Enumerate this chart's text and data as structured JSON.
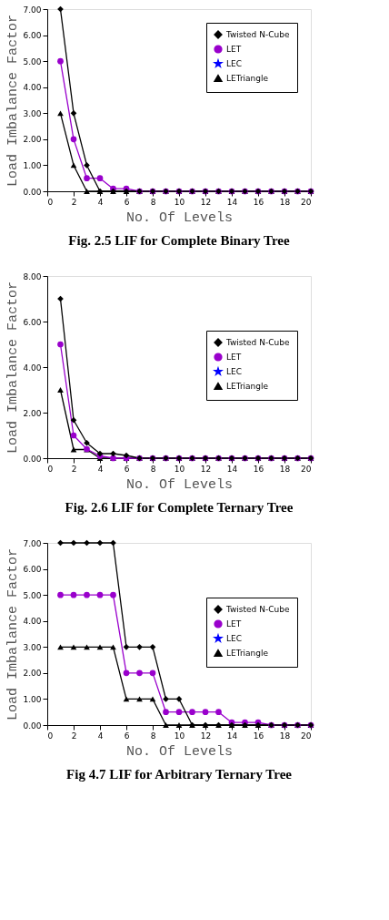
{
  "chart_data": [
    {
      "type": "line",
      "title": "Fig. 2.5 LIF for Complete Binary Tree",
      "xlabel": "No.  Of   Levels",
      "ylabel": "Load Imbalance Factor",
      "legend": "top right",
      "grid": false,
      "x": [
        1,
        2,
        3,
        4,
        5,
        6,
        7,
        8,
        9,
        10,
        11,
        12,
        13,
        14,
        15,
        16,
        17,
        18,
        19,
        20
      ],
      "xlim": [
        0,
        20
      ],
      "xticks": [
        0,
        2,
        4,
        6,
        8,
        10,
        12,
        14,
        16,
        18,
        20
      ],
      "ylim": [
        0,
        7
      ],
      "yticks": [
        {
          "value": 0,
          "label": "0.00"
        },
        {
          "value": 1,
          "label": "1.00"
        },
        {
          "value": 2,
          "label": "2.00"
        },
        {
          "value": 3,
          "label": "3.00"
        },
        {
          "value": 4,
          "label": "4.00"
        },
        {
          "value": 5,
          "label": "5.00"
        },
        {
          "value": 6,
          "label": "6.00"
        },
        {
          "value": 7,
          "label": "7.00"
        }
      ],
      "series": [
        {
          "name": "Twisted N-Cube",
          "color": "#000000",
          "marker": "diamond",
          "values": [
            7,
            3,
            1,
            0,
            0,
            0,
            0,
            0,
            0,
            0,
            0,
            0,
            0,
            0,
            0,
            0,
            0,
            0,
            0,
            0
          ]
        },
        {
          "name": "LET",
          "color": "#9900cc",
          "marker": "circle",
          "values": [
            5,
            2,
            0.5,
            0.5,
            0.1,
            0.1,
            0,
            0,
            0,
            0,
            0,
            0,
            0,
            0,
            0,
            0,
            0,
            0,
            0,
            0
          ]
        },
        {
          "name": "LEC",
          "color": "#0000ff",
          "marker": "star",
          "values": [
            null,
            null,
            null,
            null,
            null,
            null,
            null,
            null,
            null,
            null,
            null,
            null,
            null,
            null,
            null,
            null,
            null,
            null,
            null,
            null
          ]
        },
        {
          "name": "LETriangle",
          "color": "#000000",
          "marker": "triangle",
          "values": [
            3,
            1,
            0,
            0,
            0,
            0,
            0,
            0,
            0,
            0,
            0,
            0,
            0,
            0,
            0,
            0,
            0,
            0,
            0,
            0
          ]
        }
      ]
    },
    {
      "type": "line",
      "title": "Fig. 2.6 LIF for Complete Ternary Tree",
      "xlabel": "No.  Of   Levels",
      "ylabel": "Load Imbalance Factor",
      "legend": "right",
      "grid": false,
      "x": [
        1,
        2,
        3,
        4,
        5,
        6,
        7,
        8,
        9,
        10,
        11,
        12,
        13,
        14,
        15,
        16,
        17,
        18,
        19,
        20
      ],
      "xlim": [
        0,
        20
      ],
      "xticks": [
        0,
        2,
        4,
        6,
        8,
        10,
        12,
        14,
        16,
        18,
        20
      ],
      "ylim": [
        0,
        8
      ],
      "yticks": [
        {
          "value": 0,
          "label": "0.00"
        },
        {
          "value": 2,
          "label": "2.00"
        },
        {
          "value": 4,
          "label": "4.00"
        },
        {
          "value": 6,
          "label": "6.00"
        },
        {
          "value": 8,
          "label": "8.00"
        }
      ],
      "series": [
        {
          "name": "Twisted N-Cube",
          "color": "#000000",
          "marker": "diamond",
          "values": [
            7,
            1.67,
            0.67,
            0.2,
            0.2,
            0.12,
            0,
            0,
            0,
            0,
            0,
            0,
            0,
            0,
            0,
            0,
            0,
            0,
            0,
            0
          ]
        },
        {
          "name": "LET",
          "color": "#9900cc",
          "marker": "circle",
          "values": [
            5,
            1,
            0.4,
            0.1,
            0,
            0,
            0,
            0,
            0,
            0,
            0,
            0,
            0,
            0,
            0,
            0,
            0,
            0,
            0,
            0
          ]
        },
        {
          "name": "LEC",
          "color": "#0000ff",
          "marker": "star",
          "values": [
            null,
            null,
            null,
            null,
            null,
            null,
            null,
            null,
            null,
            null,
            null,
            null,
            null,
            null,
            null,
            null,
            null,
            null,
            null,
            null
          ]
        },
        {
          "name": "LETriangle",
          "color": "#000000",
          "marker": "triangle",
          "values": [
            3,
            0.38,
            0.38,
            0,
            0,
            0,
            0,
            0,
            0,
            0,
            0,
            0,
            0,
            0,
            0,
            0,
            0,
            0,
            0,
            0
          ]
        }
      ]
    },
    {
      "type": "line",
      "title": "Fig 4.7 LIF for Arbitrary Ternary Tree",
      "xlabel": "No.  Of   Levels",
      "ylabel": "Load Imbalance Factor",
      "legend": "right",
      "grid": false,
      "x": [
        1,
        2,
        3,
        4,
        5,
        6,
        7,
        8,
        9,
        10,
        11,
        12,
        13,
        14,
        15,
        16,
        17,
        18,
        19,
        20
      ],
      "xlim": [
        0,
        20
      ],
      "xticks": [
        0,
        2,
        4,
        6,
        8,
        10,
        12,
        14,
        16,
        18,
        20
      ],
      "ylim": [
        0,
        7
      ],
      "yticks": [
        {
          "value": 0,
          "label": "0.00"
        },
        {
          "value": 1,
          "label": "1.00"
        },
        {
          "value": 2,
          "label": "2.00"
        },
        {
          "value": 3,
          "label": "3.00"
        },
        {
          "value": 4,
          "label": "4.00"
        },
        {
          "value": 5,
          "label": "5.00"
        },
        {
          "value": 6,
          "label": "6.00"
        },
        {
          "value": 7,
          "label": "7.00"
        }
      ],
      "series": [
        {
          "name": "Twisted N-Cube",
          "color": "#000000",
          "marker": "diamond",
          "values": [
            7,
            7,
            7,
            7,
            7,
            3,
            3,
            3,
            1,
            1,
            0,
            0,
            0,
            0,
            0,
            0,
            0,
            0,
            0,
            0
          ]
        },
        {
          "name": "LET",
          "color": "#9900cc",
          "marker": "circle",
          "values": [
            5,
            5,
            5,
            5,
            5,
            2,
            2,
            2,
            0.5,
            0.5,
            0.5,
            0.5,
            0.5,
            0.1,
            0.1,
            0.1,
            0,
            0,
            0,
            0
          ]
        },
        {
          "name": "LEC",
          "color": "#0000ff",
          "marker": "star",
          "values": [
            null,
            null,
            null,
            null,
            null,
            null,
            null,
            null,
            null,
            null,
            null,
            null,
            null,
            null,
            null,
            null,
            null,
            null,
            null,
            null
          ]
        },
        {
          "name": "LETriangle",
          "color": "#000000",
          "marker": "triangle",
          "values": [
            3,
            3,
            3,
            3,
            3,
            1,
            1,
            1,
            0,
            0,
            0,
            0,
            0,
            0,
            0,
            0,
            0,
            0,
            0,
            0
          ]
        }
      ]
    }
  ]
}
